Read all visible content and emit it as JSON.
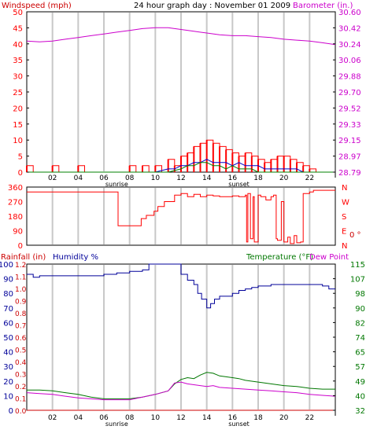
{
  "colors": {
    "wind_gust": "#ff0000",
    "wind_avg": "#0000cc",
    "wind_extra": "#008000",
    "barometer": "#cc00cc",
    "direction": "#ff0000",
    "humidity": "#000099",
    "temperature": "#007700",
    "dew_point": "#cc00cc",
    "rainfall": "#cc0000",
    "grid_vertical": "#c8c8c8",
    "frame": "#000000"
  },
  "chart_data": [
    {
      "type": "line",
      "panel": "wind-barometer",
      "title": "24 hour graph day : November 01 2009",
      "left_axis_label": "Windspeed (mph)",
      "right_axis_label": "Barometer (in.)",
      "left_ticks": [
        "0",
        "5",
        "10",
        "15",
        "20",
        "25",
        "30",
        "35",
        "40",
        "45",
        "50"
      ],
      "right_ticks": [
        "28.79",
        "28.97",
        "29.15",
        "29.33",
        "29.52",
        "29.70",
        "29.88",
        "30.06",
        "30.24",
        "30.42",
        "30.60"
      ],
      "x_ticks": [
        "02",
        "04",
        "06",
        "08",
        "10",
        "12",
        "14",
        "16",
        "18",
        "20",
        "22"
      ],
      "x_extra_labels": [
        "sunrise",
        "sunset"
      ],
      "ylim": [
        0,
        50
      ],
      "y2lim": [
        28.79,
        30.6
      ],
      "xlim": [
        0,
        24
      ],
      "series": [
        {
          "key": "barometer",
          "axis": "right",
          "x": [
            0,
            1,
            2,
            3,
            4,
            5,
            6,
            7,
            8,
            9,
            10,
            11,
            12,
            13,
            14,
            15,
            16,
            17,
            18,
            19,
            20,
            21,
            22,
            23,
            24
          ],
          "values": [
            30.27,
            30.26,
            30.27,
            30.29,
            30.31,
            30.33,
            30.35,
            30.37,
            30.39,
            30.41,
            30.42,
            30.42,
            30.4,
            30.38,
            30.36,
            30.34,
            30.33,
            30.33,
            30.32,
            30.31,
            30.29,
            30.28,
            30.27,
            30.25,
            30.23
          ]
        },
        {
          "key": "wind_gust",
          "axis": "left",
          "x": [
            0,
            0.5,
            1,
            1.5,
            2,
            2.5,
            3,
            3.5,
            4,
            4.5,
            5,
            5.5,
            6,
            6.5,
            7,
            7.5,
            8,
            8.5,
            9,
            9.5,
            10,
            10.5,
            11,
            11.5,
            12,
            12.5,
            13,
            13.5,
            14,
            14.5,
            15,
            15.5,
            16,
            16.5,
            17,
            17.5,
            18,
            18.5,
            19,
            19.5,
            20,
            20.5,
            21,
            21.5,
            22,
            22.5,
            23,
            23.5,
            24
          ],
          "values": [
            2,
            0,
            0,
            0,
            2,
            0,
            0,
            0,
            2,
            0,
            0,
            0,
            0,
            0,
            0,
            0,
            2,
            0,
            2,
            0,
            2,
            0,
            4,
            2,
            5,
            6,
            8,
            9,
            10,
            9,
            8,
            7,
            6,
            5,
            6,
            5,
            4,
            3,
            4,
            5,
            5,
            4,
            3,
            2,
            1,
            0,
            0,
            0,
            0
          ]
        },
        {
          "key": "wind_avg",
          "axis": "left",
          "x": [
            0,
            1,
            2,
            3,
            4,
            5,
            6,
            7,
            8,
            9,
            10,
            11,
            11.5,
            12,
            12.5,
            13,
            13.5,
            14,
            14.5,
            15,
            15.5,
            16,
            16.5,
            17,
            17.5,
            18,
            18.5,
            19,
            19.5,
            20,
            20.5,
            21,
            21.5,
            22,
            23,
            24
          ],
          "values": [
            0,
            0,
            0,
            0,
            0,
            0,
            0,
            0,
            0,
            0,
            0,
            1,
            1,
            2,
            2,
            3,
            3,
            4,
            3,
            3,
            3,
            2,
            3,
            2,
            2,
            2,
            1,
            1,
            1,
            1,
            1,
            1,
            0,
            0,
            0,
            0
          ]
        },
        {
          "key": "wind_extra",
          "axis": "left",
          "x": [
            0,
            1,
            2,
            3,
            4,
            5,
            6,
            7,
            8,
            9,
            10,
            11,
            12,
            12.5,
            13,
            13.5,
            14,
            14.5,
            15,
            15.5,
            16,
            16.5,
            17,
            17.5,
            18,
            19,
            20,
            21,
            22,
            23,
            24
          ],
          "values": [
            0,
            0,
            0,
            0,
            0,
            0,
            0,
            0,
            0,
            0,
            0,
            0,
            1,
            2,
            2,
            3,
            3,
            2,
            2,
            1,
            2,
            1,
            1,
            1,
            0,
            0,
            0,
            0,
            0,
            0,
            0
          ]
        }
      ]
    },
    {
      "type": "line",
      "panel": "wind-direction",
      "left_ticks": [
        "0",
        "90",
        "180",
        "270",
        "360"
      ],
      "right_ticks": [
        "N",
        "E",
        "S",
        "W",
        "N"
      ],
      "right_unit": "0 °",
      "ylim": [
        0,
        360
      ],
      "xlim": [
        0,
        24
      ],
      "series": [
        {
          "key": "direction",
          "x": [
            0,
            6.9,
            7.1,
            8.8,
            8.9,
            9.2,
            9.3,
            9.8,
            9.9,
            10.1,
            10.2,
            10.6,
            10.7,
            11.3,
            11.5,
            12,
            12.5,
            13,
            13.5,
            14,
            14.5,
            15,
            15.5,
            16,
            16.5,
            17,
            17.1,
            17.2,
            17.4,
            17.6,
            17.7,
            18,
            18.2,
            18.6,
            18.8,
            19,
            19.2,
            19.4,
            19.5,
            19.8,
            20,
            20.3,
            20.5,
            20.8,
            21,
            21.3,
            21.5,
            22,
            22.3,
            22.6,
            24
          ],
          "values": [
            330,
            330,
            120,
            120,
            165,
            165,
            185,
            185,
            210,
            210,
            240,
            240,
            270,
            270,
            310,
            320,
            300,
            315,
            300,
            310,
            305,
            300,
            300,
            305,
            300,
            310,
            20,
            320,
            40,
            300,
            20,
            310,
            300,
            280,
            280,
            300,
            310,
            40,
            30,
            270,
            20,
            50,
            10,
            60,
            15,
            20,
            320,
            330,
            340,
            340,
            340
          ]
        }
      ]
    },
    {
      "type": "line",
      "panel": "humidity-temperature",
      "left_label_1": "Rainfall (in)",
      "left_label_2": "Humidity %",
      "right_label_1": "Temperature (°F)",
      "right_label_2": "Dew Point",
      "humidity_ticks": [
        "0",
        "10",
        "20",
        "30",
        "40",
        "50",
        "60",
        "70",
        "80",
        "90",
        "100"
      ],
      "rain_ticks": [
        "0.0",
        "0.1",
        "0.2",
        "0.3",
        "0.4",
        "0.5",
        "0.6",
        "0.7",
        "0.8",
        "0.9",
        "1.0",
        "1.1",
        "1.2"
      ],
      "temp_ticks": [
        "32",
        "40",
        "49",
        "57",
        "65",
        "74",
        "82",
        "90",
        "98",
        "107",
        "115"
      ],
      "x_ticks": [
        "02",
        "04",
        "06",
        "08",
        "10",
        "12",
        "14",
        "16",
        "18",
        "20",
        "22"
      ],
      "x_extra_labels": [
        "sunrise",
        "sunset"
      ],
      "ylim": [
        0,
        100
      ],
      "y2lim": [
        32,
        115
      ],
      "xlim": [
        0,
        24
      ],
      "series": [
        {
          "key": "humidity",
          "axis": "left",
          "x": [
            0,
            0.5,
            1,
            2,
            3,
            4,
            5,
            6,
            7,
            8,
            9,
            9.5,
            10,
            11,
            11.5,
            12,
            12.5,
            13,
            13.3,
            13.6,
            14,
            14.3,
            14.6,
            15,
            15.5,
            16,
            16.5,
            17,
            17.5,
            18,
            18.5,
            19,
            19.5,
            20,
            21,
            22,
            23,
            23.5,
            24
          ],
          "values": [
            93,
            91,
            92,
            92,
            92,
            92,
            92,
            93,
            94,
            95,
            96,
            100,
            100,
            100,
            100,
            93,
            89,
            86,
            80,
            76,
            70,
            73,
            76,
            78,
            78,
            80,
            82,
            83,
            84,
            85,
            85,
            86,
            86,
            86,
            86,
            86,
            85,
            83,
            83
          ]
        },
        {
          "key": "temperature",
          "axis": "right",
          "x": [
            0,
            1,
            2,
            3,
            4,
            5,
            6,
            7,
            8,
            9,
            10,
            11,
            11.5,
            12,
            12.5,
            13,
            13.5,
            14,
            14.5,
            15,
            15.5,
            16,
            16.5,
            17,
            17.5,
            18,
            18.5,
            19,
            19.5,
            20,
            21,
            22,
            23,
            24
          ],
          "values": [
            43.5,
            43.5,
            43,
            42,
            41,
            39.5,
            38.5,
            38.5,
            38.5,
            39.5,
            41,
            43,
            47,
            49.5,
            50.5,
            50,
            52,
            53.5,
            53,
            51.5,
            51,
            50.5,
            50,
            49,
            48.5,
            48,
            47.5,
            47,
            46.5,
            46,
            45.5,
            44.5,
            44,
            44
          ]
        },
        {
          "key": "dew_point",
          "axis": "right",
          "x": [
            0,
            1,
            2,
            3,
            4,
            5,
            6,
            7,
            8,
            9,
            10,
            11,
            11.5,
            12,
            12.5,
            13,
            13.5,
            14,
            14.5,
            15,
            16,
            17,
            18,
            19,
            20,
            21,
            22,
            23,
            24
          ],
          "values": [
            42,
            41.5,
            41,
            40,
            39,
            38.5,
            38,
            38,
            38,
            39.5,
            41,
            43,
            47.5,
            48,
            47,
            46.5,
            46,
            45.5,
            46,
            45,
            44.5,
            44,
            43.5,
            43,
            42.5,
            42,
            41,
            40.5,
            40
          ]
        },
        {
          "key": "rainfall",
          "axis": "rain",
          "x": [
            0,
            24
          ],
          "values": [
            0.0,
            0.0
          ]
        }
      ]
    }
  ]
}
